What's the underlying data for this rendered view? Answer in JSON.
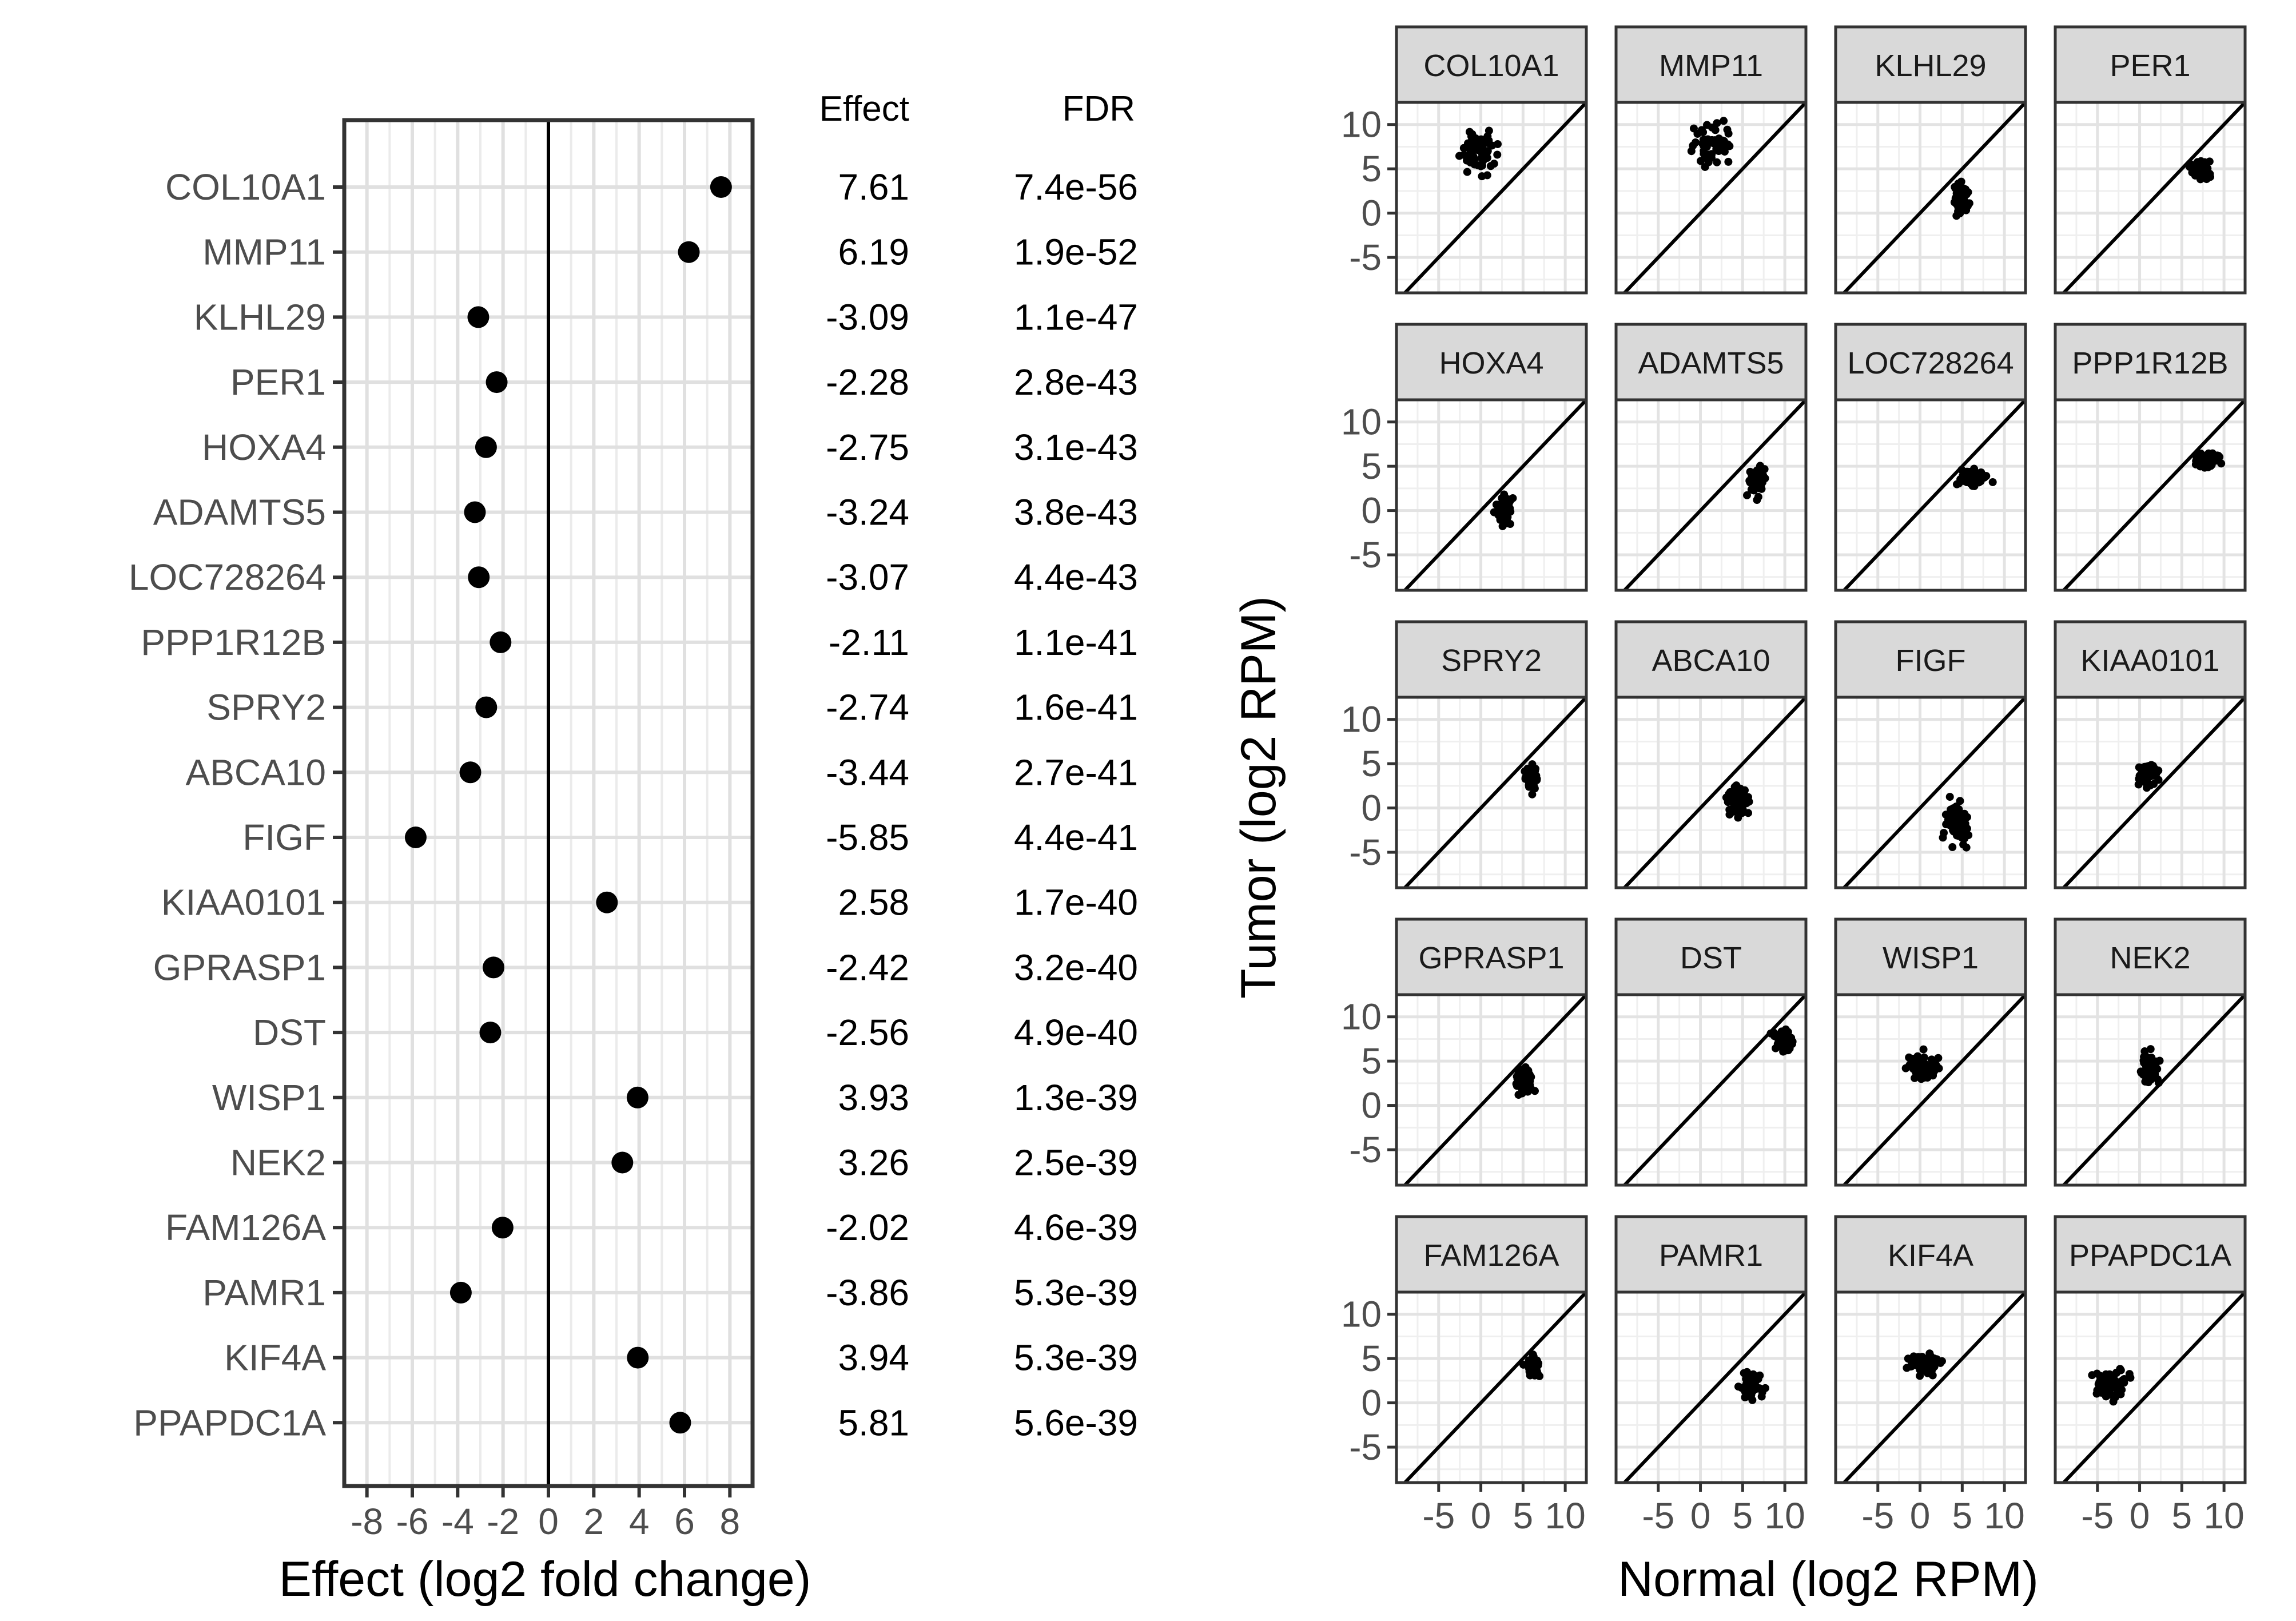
{
  "chart_data": [
    {
      "type": "scatter",
      "xlabel": "Effect (log2 fold change)",
      "xlim": [
        -9,
        9
      ],
      "xticks": [
        -8,
        -6,
        -4,
        -2,
        0,
        2,
        4,
        6,
        8
      ],
      "vline": 0,
      "table_headers": [
        "Effect",
        "FDR"
      ],
      "genes": [
        "COL10A1",
        "MMP11",
        "KLHL29",
        "PER1",
        "HOXA4",
        "ADAMTS5",
        "LOC728264",
        "PPP1R12B",
        "SPRY2",
        "ABCA10",
        "FIGF",
        "KIAA0101",
        "GPRASP1",
        "DST",
        "WISP1",
        "NEK2",
        "FAM126A",
        "PAMR1",
        "KIF4A",
        "PPAPDC1A"
      ],
      "effect_labels": [
        "7.61",
        "6.19",
        "-3.09",
        "-2.28",
        "-2.75",
        "-3.24",
        "-3.07",
        "-2.11",
        "-2.74",
        "-3.44",
        "-5.85",
        "2.58",
        "-2.42",
        "-2.56",
        "3.93",
        "3.26",
        "-2.02",
        "-3.86",
        "3.94",
        "5.81"
      ],
      "fdr_labels": [
        "7.4e-56",
        "1.9e-52",
        "1.1e-47",
        "2.8e-43",
        "3.1e-43",
        "3.8e-43",
        "4.4e-43",
        "1.1e-41",
        "1.6e-41",
        "2.7e-41",
        "4.4e-41",
        "1.7e-40",
        "3.2e-40",
        "4.9e-40",
        "1.3e-39",
        "2.5e-39",
        "4.6e-39",
        "5.3e-39",
        "5.3e-39",
        "5.6e-39"
      ],
      "effects": [
        7.61,
        6.19,
        -3.09,
        -2.28,
        -2.75,
        -3.24,
        -3.07,
        -2.11,
        -2.74,
        -3.44,
        -5.85,
        2.58,
        -2.42,
        -2.56,
        3.93,
        3.26,
        -2.02,
        -3.86,
        3.94,
        5.81
      ]
    },
    {
      "type": "scatter",
      "xlabel": "Normal (log2 RPM)",
      "ylabel": "Tumor (log2 RPM)",
      "xlim": [
        -10,
        12.5
      ],
      "ylim": [
        -9,
        12.5
      ],
      "xticks": [
        -5,
        0,
        5,
        10
      ],
      "yticks": [
        -5,
        0,
        5,
        10
      ],
      "diagonal": "y = x",
      "panels": [
        {
          "gene": "COL10A1",
          "normal": {
            "center": 0,
            "spread": 2.3
          },
          "tumor": {
            "center": 7,
            "spread": 2.2
          }
        },
        {
          "gene": "MMP11",
          "normal": {
            "center": 1.2,
            "spread": 2.2
          },
          "tumor": {
            "center": 8,
            "spread": 2.4
          }
        },
        {
          "gene": "KLHL29",
          "normal": {
            "center": 4.9,
            "spread": 0.9
          },
          "tumor": {
            "center": 1.8,
            "spread": 1.8
          }
        },
        {
          "gene": "PER1",
          "normal": {
            "center": 7.2,
            "spread": 1.2
          },
          "tumor": {
            "center": 4.9,
            "spread": 1.2
          }
        },
        {
          "gene": "HOXA4",
          "normal": {
            "center": 2.8,
            "spread": 1.1
          },
          "tumor": {
            "center": 0.1,
            "spread": 1.7
          }
        },
        {
          "gene": "ADAMTS5",
          "normal": {
            "center": 6.6,
            "spread": 1.1
          },
          "tumor": {
            "center": 3.4,
            "spread": 1.6
          }
        },
        {
          "gene": "LOC728264",
          "normal": {
            "center": 6.2,
            "spread": 1.8
          },
          "tumor": {
            "center": 3.8,
            "spread": 1.0
          }
        },
        {
          "gene": "PPP1R12B",
          "normal": {
            "center": 8.0,
            "spread": 1.3
          },
          "tumor": {
            "center": 5.8,
            "spread": 1.0
          }
        },
        {
          "gene": "SPRY2",
          "normal": {
            "center": 6.0,
            "spread": 0.8
          },
          "tumor": {
            "center": 3.2,
            "spread": 1.8
          }
        },
        {
          "gene": "ABCA10",
          "normal": {
            "center": 4.3,
            "spread": 1.4
          },
          "tumor": {
            "center": 1.0,
            "spread": 1.8
          }
        },
        {
          "gene": "FIGF",
          "normal": {
            "center": 4.2,
            "spread": 1.6
          },
          "tumor": {
            "center": -1.6,
            "spread": 2.6
          }
        },
        {
          "gene": "KIAA0101",
          "normal": {
            "center": 1.1,
            "spread": 1.2
          },
          "tumor": {
            "center": 3.8,
            "spread": 1.4
          }
        },
        {
          "gene": "GPRASP1",
          "normal": {
            "center": 5.2,
            "spread": 0.9
          },
          "tumor": {
            "center": 2.8,
            "spread": 1.5
          }
        },
        {
          "gene": "DST",
          "normal": {
            "center": 9.9,
            "spread": 1.2
          },
          "tumor": {
            "center": 7.4,
            "spread": 1.3
          }
        },
        {
          "gene": "WISP1",
          "normal": {
            "center": 0.2,
            "spread": 2.3
          },
          "tumor": {
            "center": 4.1,
            "spread": 1.6
          }
        },
        {
          "gene": "NEK2",
          "normal": {
            "center": 1.2,
            "spread": 1.2
          },
          "tumor": {
            "center": 4.2,
            "spread": 1.8
          }
        },
        {
          "gene": "FAM126A",
          "normal": {
            "center": 6.2,
            "spread": 0.8
          },
          "tumor": {
            "center": 4.2,
            "spread": 1.2
          }
        },
        {
          "gene": "PAMR1",
          "normal": {
            "center": 6.0,
            "spread": 1.3
          },
          "tumor": {
            "center": 2.2,
            "spread": 1.8
          }
        },
        {
          "gene": "KIF4A",
          "normal": {
            "center": 0.4,
            "spread": 2.1
          },
          "tumor": {
            "center": 4.4,
            "spread": 1.4
          }
        },
        {
          "gene": "PPAPDC1A",
          "normal": {
            "center": -3.4,
            "spread": 2.7
          },
          "tumor": {
            "center": 2.3,
            "spread": 1.8
          }
        }
      ]
    }
  ]
}
